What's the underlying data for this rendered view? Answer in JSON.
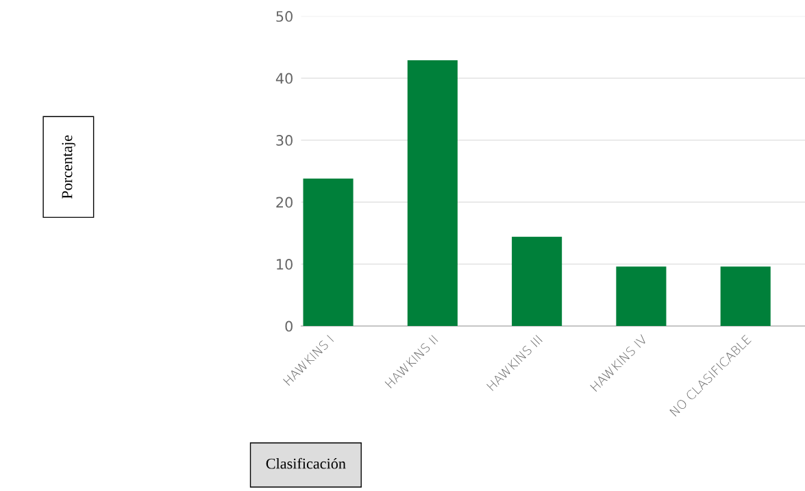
{
  "chart_data": {
    "type": "bar",
    "categories": [
      "HAWKINS I",
      "HAWKINS II",
      "HAWKINS III",
      "HAWKINS IV",
      "NO CLASIFICABLE"
    ],
    "values": [
      23.8,
      42.9,
      14.4,
      9.6,
      9.6
    ],
    "color": "#00803a",
    "ylim": [
      0,
      50
    ],
    "yticks": [
      0,
      10,
      20,
      30,
      40,
      50
    ],
    "grid": "y",
    "annotations": [
      "Porcentaje"
    ],
    "xlabel": "Clasificación"
  }
}
